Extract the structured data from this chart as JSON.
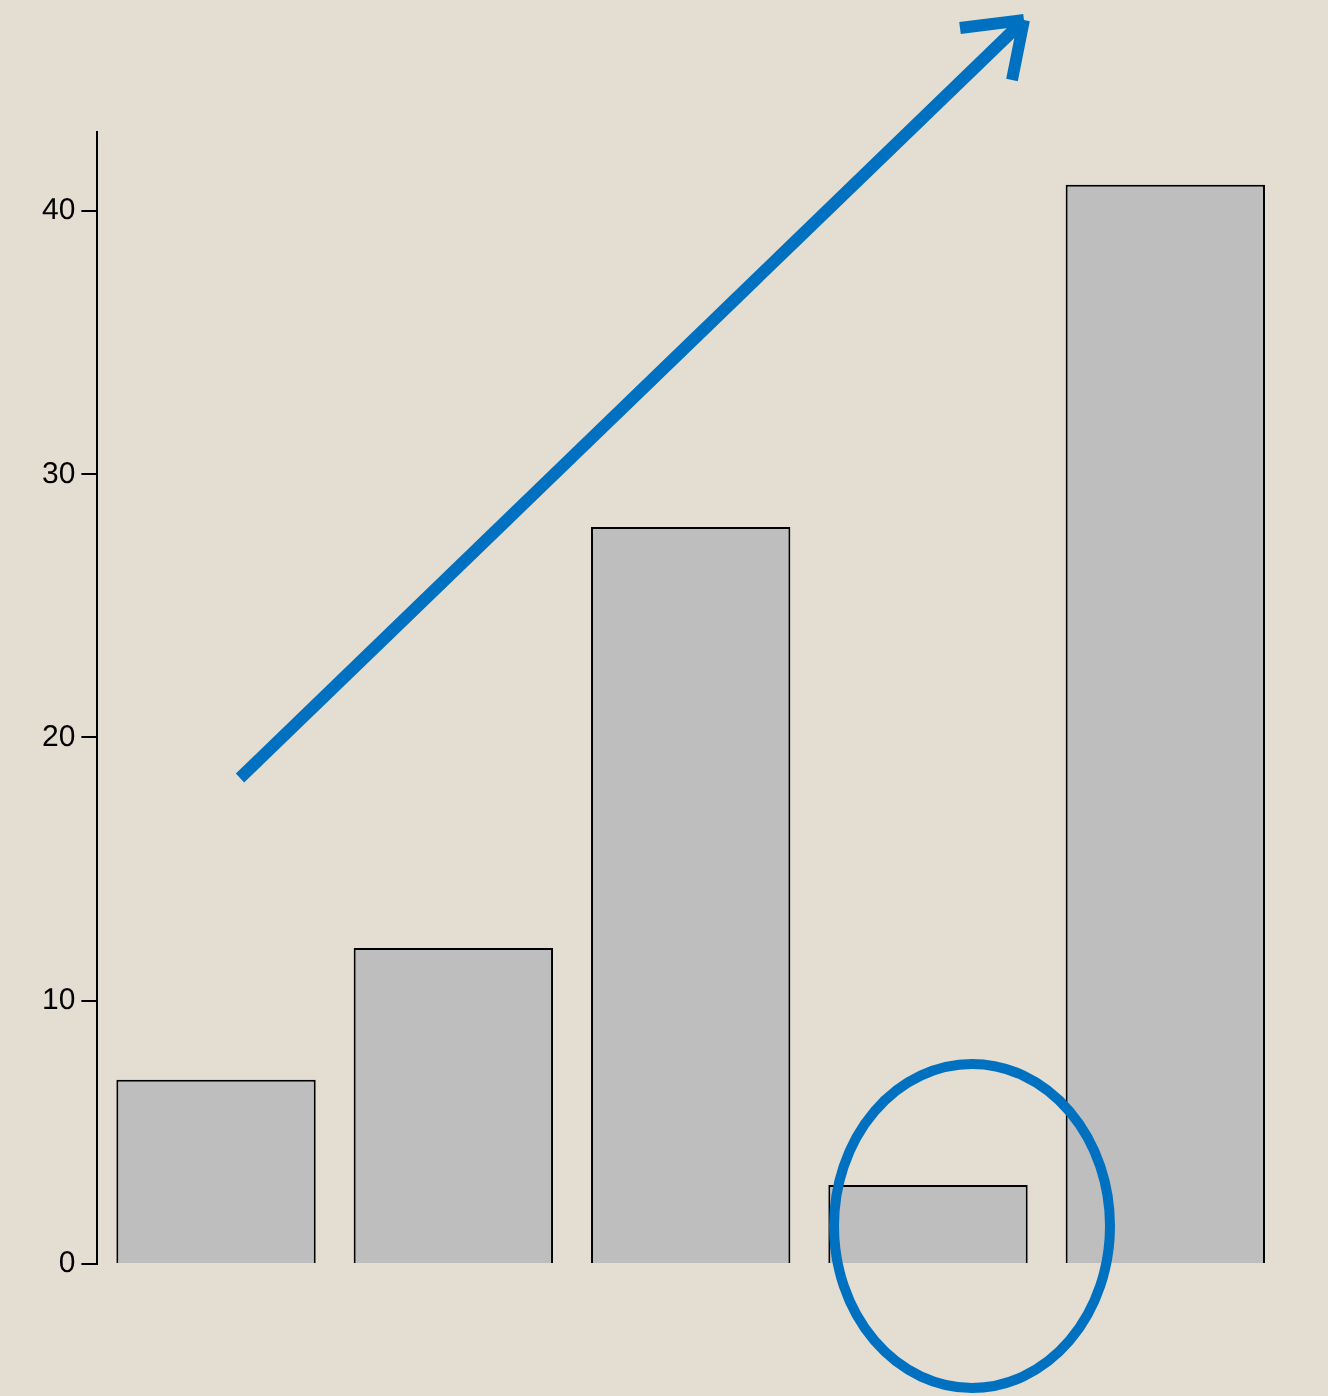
{
  "chart_data": {
    "type": "bar",
    "categories": [
      null,
      null,
      null,
      null,
      null
    ],
    "values": [
      7,
      12,
      28,
      3,
      41
    ],
    "color": "#bebebe",
    "ylim": [
      0,
      43
    ],
    "yticks": [
      0,
      10,
      20,
      30,
      40
    ],
    "grid": false,
    "legend": false
  }
}
